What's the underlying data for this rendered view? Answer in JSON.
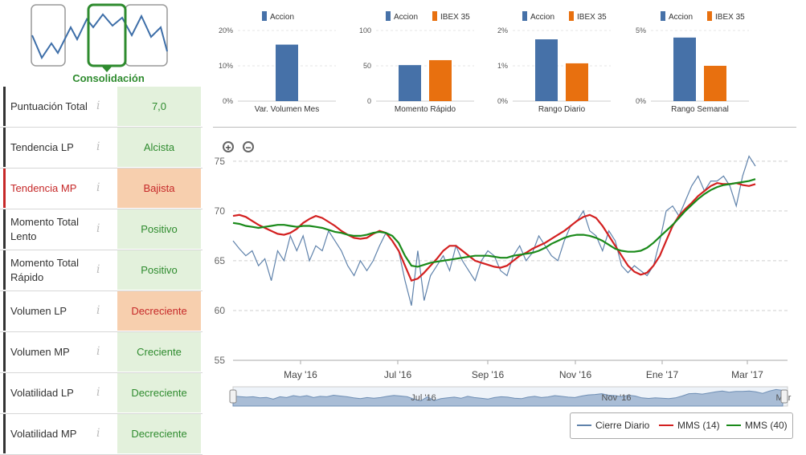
{
  "consolidacion": {
    "label": "Consolidación"
  },
  "indicators": [
    {
      "label": "Puntuación Total",
      "value": "7,0",
      "tone": "green",
      "highlight": false
    },
    {
      "label": "Tendencia LP",
      "value": "Alcista",
      "tone": "green",
      "highlight": false
    },
    {
      "label": "Tendencia MP",
      "value": "Bajista",
      "tone": "orange",
      "highlight": true
    },
    {
      "label": "Momento Total Lento",
      "value": "Positivo",
      "tone": "green",
      "highlight": false
    },
    {
      "label": "Momento Total Rápido",
      "value": "Positivo",
      "tone": "green",
      "highlight": false
    },
    {
      "label": "Volumen LP",
      "value": "Decreciente",
      "tone": "orange",
      "highlight": false
    },
    {
      "label": "Volumen MP",
      "value": "Creciente",
      "tone": "green",
      "highlight": false
    },
    {
      "label": "Volatilidad LP",
      "value": "Decreciente",
      "tone": "green",
      "highlight": false
    },
    {
      "label": "Volatilidad MP",
      "value": "Decreciente",
      "tone": "green",
      "highlight": false
    }
  ],
  "info_glyph": "i",
  "colors": {
    "accion": "#4671a8",
    "ibex": "#e8700f",
    "mms14": "#d32020",
    "mms40": "#1a8a1a",
    "cierre": "#5f82ab"
  },
  "chart_data": [
    {
      "type": "bar",
      "title": "Var. Volumen Mes",
      "series": [
        {
          "name": "Accion",
          "values": [
            16
          ]
        }
      ],
      "categories": [
        "Var. Volumen Mes"
      ],
      "yticks": [
        "0%",
        "10%",
        "20%"
      ],
      "ylim": [
        0,
        20
      ]
    },
    {
      "type": "bar",
      "title": "Momento Rápido",
      "series": [
        {
          "name": "Accion",
          "values": [
            51
          ]
        },
        {
          "name": "IBEX 35",
          "values": [
            58
          ]
        }
      ],
      "categories": [
        "Momento Rápido"
      ],
      "yticks": [
        "0",
        "50",
        "100"
      ],
      "ylim": [
        0,
        100
      ]
    },
    {
      "type": "bar",
      "title": "Rango Diario",
      "series": [
        {
          "name": "Accion",
          "values": [
            1.75
          ]
        },
        {
          "name": "IBEX 35",
          "values": [
            1.07
          ]
        }
      ],
      "categories": [
        "Rango Diario"
      ],
      "yticks": [
        "0%",
        "1%",
        "2%"
      ],
      "ylim": [
        0,
        2
      ]
    },
    {
      "type": "bar",
      "title": "Rango Semanal",
      "series": [
        {
          "name": "Accion",
          "values": [
            4.5
          ]
        },
        {
          "name": "IBEX 35",
          "values": [
            2.5
          ]
        }
      ],
      "categories": [
        "Rango Semanal"
      ],
      "yticks": [
        "0%",
        "5%"
      ],
      "ylim": [
        0,
        5
      ]
    },
    {
      "type": "line",
      "title": "",
      "ylim": [
        55,
        77
      ],
      "yticks": [
        "55",
        "60",
        "65",
        "70",
        "75"
      ],
      "xticks": [
        "May '16",
        "Jul '16",
        "Sep '16",
        "Nov '16",
        "Ene '17",
        "Mar '17"
      ],
      "navigator_labels": [
        "Jul '16",
        "Nov '16",
        "Mar"
      ],
      "series": [
        {
          "name": "Cierre Diario",
          "key": "cierre",
          "values": [
            67.0,
            66.2,
            65.5,
            66.0,
            64.5,
            65.2,
            63.0,
            66.0,
            65.0,
            67.5,
            66.0,
            67.5,
            65.0,
            66.5,
            66.0,
            68.0,
            67.0,
            66.0,
            64.5,
            63.5,
            65.0,
            64.0,
            65.0,
            66.5,
            67.8,
            67.0,
            66.0,
            63.0,
            60.5,
            66.0,
            61.0,
            63.5,
            64.5,
            65.5,
            64.0,
            66.5,
            65.0,
            64.0,
            63.0,
            65.0,
            66.0,
            65.5,
            64.0,
            63.5,
            65.5,
            66.5,
            65.0,
            65.8,
            67.5,
            66.5,
            65.5,
            65.0,
            67.0,
            68.5,
            69.0,
            70.0,
            68.0,
            67.5,
            66.0,
            68.0,
            67.0,
            64.5,
            63.8,
            64.5,
            64.0,
            63.5,
            64.5,
            67.0,
            70.0,
            70.5,
            69.5,
            71.0,
            72.5,
            73.5,
            72.0,
            73.0,
            73.0,
            73.5,
            72.5,
            70.5,
            73.5,
            75.5,
            74.5
          ]
        },
        {
          "name": "MMS (14)",
          "key": "mms14",
          "values": [
            69.5,
            69.6,
            69.4,
            69.0,
            68.6,
            68.3,
            68.0,
            67.7,
            67.6,
            67.8,
            68.2,
            68.8,
            69.2,
            69.5,
            69.3,
            68.9,
            68.5,
            68.0,
            67.6,
            67.3,
            67.2,
            67.3,
            67.7,
            68.0,
            67.8,
            67.0,
            66.0,
            64.5,
            63.0,
            63.2,
            63.8,
            64.5,
            65.2,
            66.0,
            66.5,
            66.5,
            66.0,
            65.5,
            65.0,
            64.8,
            64.6,
            64.4,
            64.3,
            64.5,
            65.0,
            65.5,
            65.8,
            66.2,
            66.5,
            66.8,
            67.2,
            67.6,
            68.0,
            68.5,
            69.0,
            69.4,
            69.6,
            69.3,
            68.5,
            67.5,
            66.5,
            65.5,
            64.5,
            63.9,
            63.6,
            63.8,
            64.5,
            65.5,
            67.0,
            68.5,
            69.5,
            70.2,
            70.8,
            71.5,
            72.0,
            72.5,
            72.8,
            72.7,
            72.7,
            72.8,
            72.6,
            72.5,
            72.7
          ]
        },
        {
          "name": "MMS (40)",
          "key": "mms40",
          "values": [
            68.8,
            68.7,
            68.5,
            68.4,
            68.3,
            68.4,
            68.5,
            68.6,
            68.6,
            68.5,
            68.4,
            68.5,
            68.5,
            68.4,
            68.3,
            68.1,
            67.9,
            67.8,
            67.6,
            67.5,
            67.5,
            67.6,
            67.8,
            67.9,
            67.8,
            67.5,
            66.8,
            65.5,
            64.5,
            64.4,
            64.6,
            64.8,
            64.9,
            65.0,
            65.1,
            65.2,
            65.3,
            65.4,
            65.5,
            65.5,
            65.5,
            65.4,
            65.3,
            65.3,
            65.5,
            65.6,
            65.7,
            65.8,
            66.0,
            66.3,
            66.7,
            67.0,
            67.3,
            67.5,
            67.6,
            67.6,
            67.5,
            67.3,
            67.0,
            66.6,
            66.2,
            66.0,
            65.9,
            65.9,
            66.0,
            66.3,
            66.8,
            67.4,
            68.0,
            68.6,
            69.3,
            70.0,
            70.6,
            71.2,
            71.7,
            72.1,
            72.4,
            72.6,
            72.7,
            72.8,
            72.9,
            73.0,
            73.2
          ]
        }
      ]
    }
  ]
}
